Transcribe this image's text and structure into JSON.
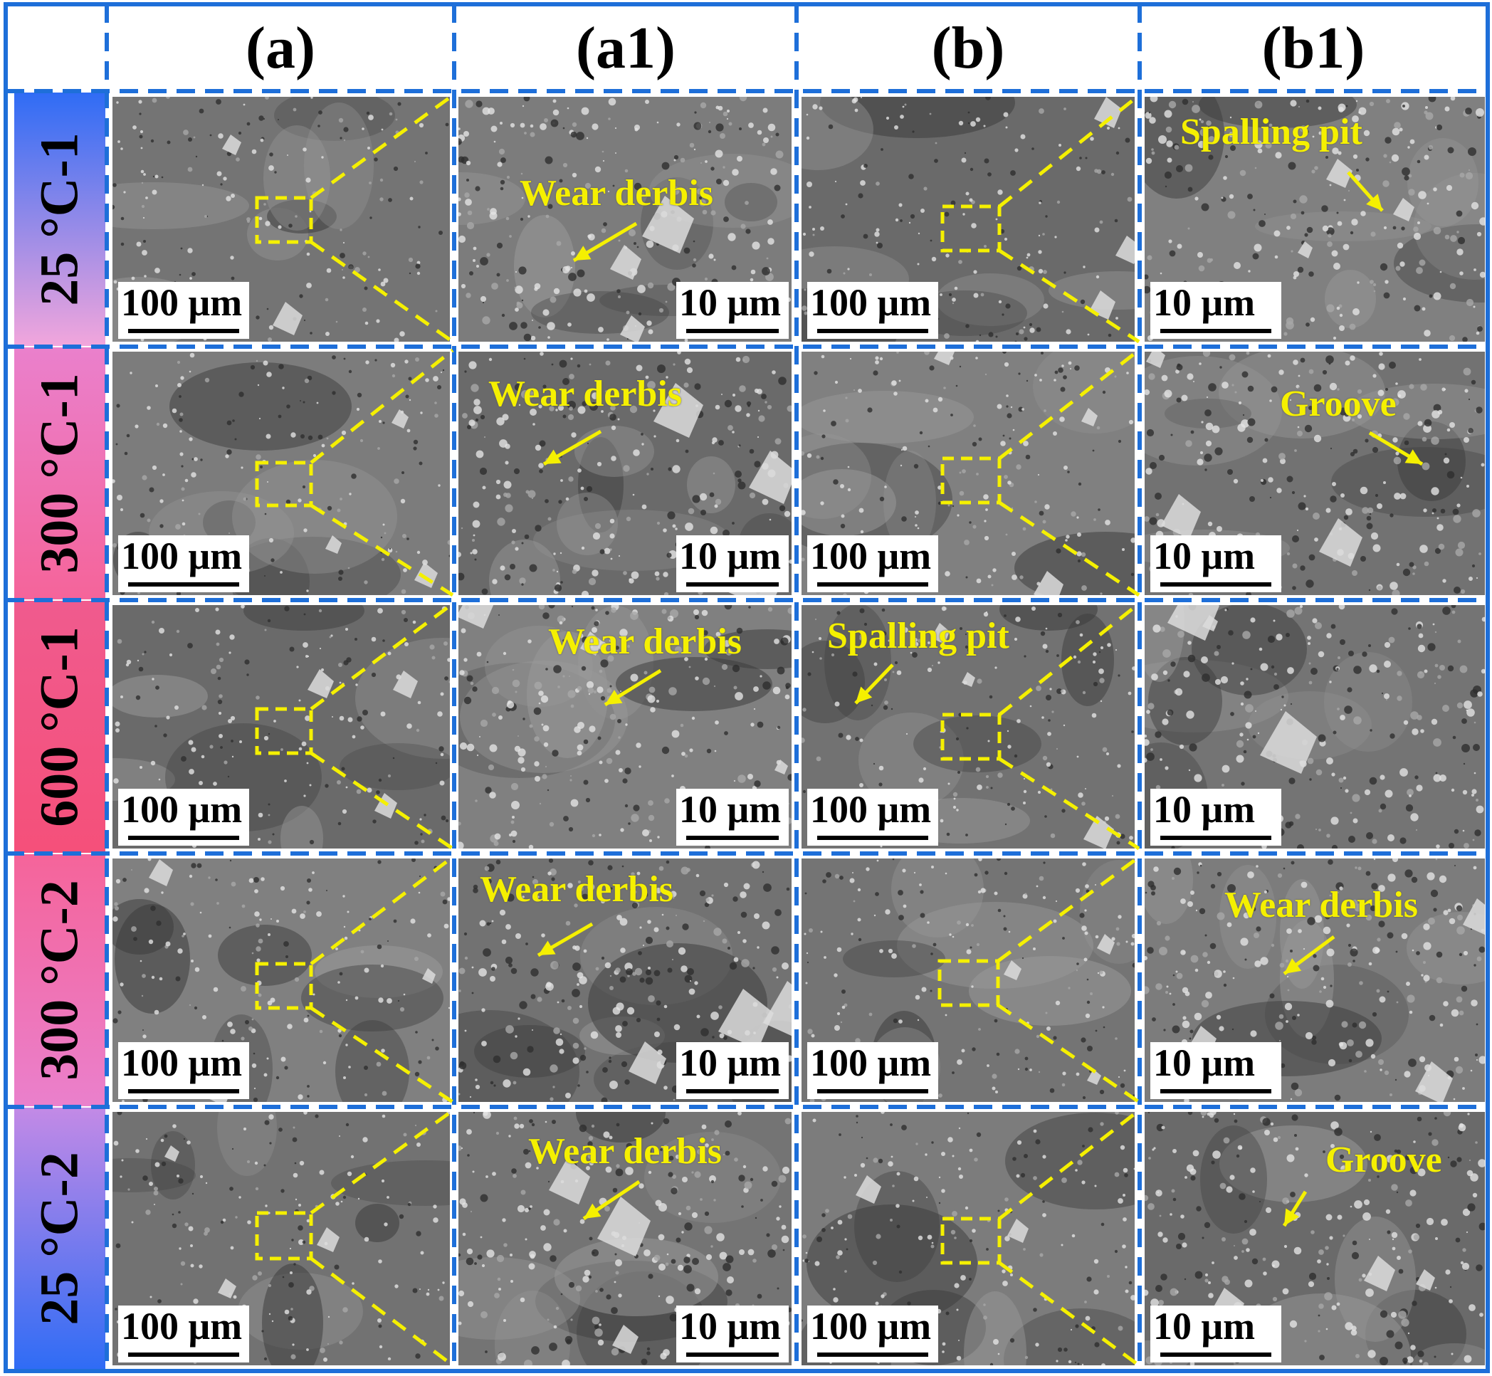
{
  "figure": {
    "column_headers": [
      "(a)",
      "(a1)",
      "(b)",
      "(b1)"
    ],
    "row_labels": [
      "25 °C-1",
      "300 °C-1",
      "600 °C-1",
      "300 °C-2",
      "25 °C-2"
    ],
    "scale_bars": {
      "low_mag": "100 μm",
      "high_mag": "10 μm"
    },
    "annotations": [
      {
        "row": 0,
        "col": 1,
        "text": "Wear derbis"
      },
      {
        "row": 0,
        "col": 3,
        "text": "Spalling pit"
      },
      {
        "row": 1,
        "col": 1,
        "text": "Wear derbis"
      },
      {
        "row": 1,
        "col": 3,
        "text": "Groove"
      },
      {
        "row": 2,
        "col": 1,
        "text": "Wear derbis"
      },
      {
        "row": 2,
        "col": 2,
        "text": "Spalling pit"
      },
      {
        "row": 3,
        "col": 1,
        "text": "Wear derbis"
      },
      {
        "row": 3,
        "col": 3,
        "text": "Wear derbis"
      },
      {
        "row": 4,
        "col": 1,
        "text": "Wear derbis"
      },
      {
        "row": 4,
        "col": 3,
        "text": "Groove"
      }
    ],
    "colors": {
      "grid_border": "#1e6fd9",
      "annotation": "#f5f000",
      "zoom_marker": "#f5f000",
      "label_gradient_blue": "#2f6cf5",
      "label_gradient_pink": "#f2a6dc",
      "label_gradient_red": "#f5507a"
    }
  }
}
